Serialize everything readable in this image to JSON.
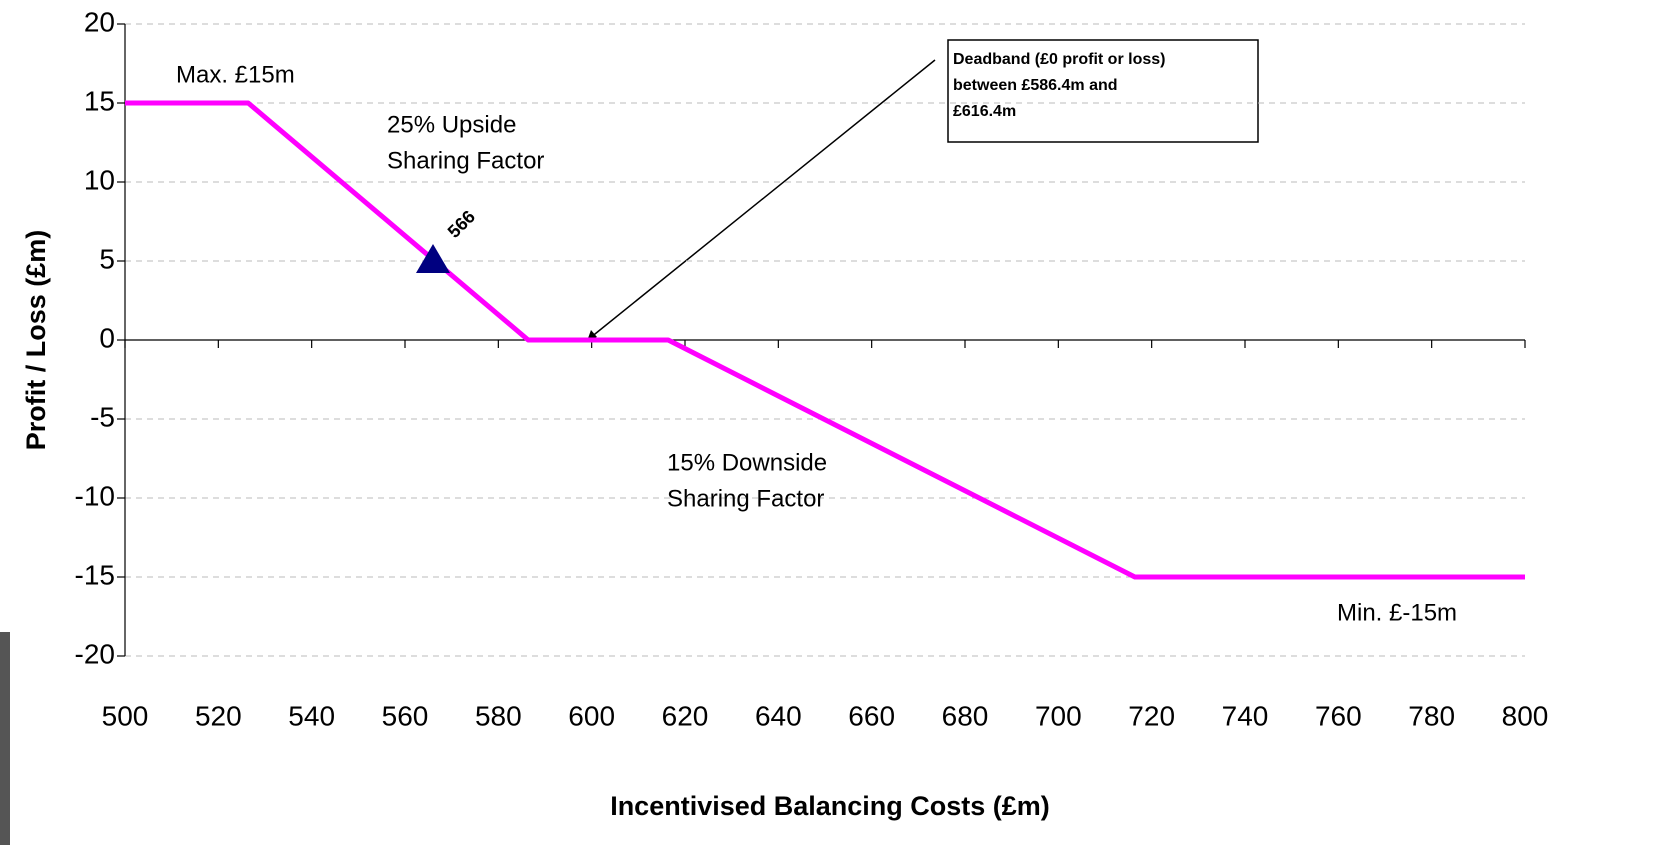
{
  "chart_data": {
    "type": "line",
    "x_label": "Incentivised Balancing Costs (£m)",
    "y_label": "Profit / Loss (£m)",
    "x": [
      500,
      526.4,
      586.4,
      616.4,
      716.4,
      800
    ],
    "values": [
      15,
      15,
      0,
      0,
      -15,
      -15
    ],
    "color": "#ff00ff",
    "marker": {
      "x": 566,
      "y": 5,
      "color": "#000080"
    },
    "xlim": [
      500,
      800
    ],
    "ylim": [
      -20,
      20
    ],
    "xticks": [
      500,
      520,
      540,
      560,
      580,
      600,
      620,
      640,
      660,
      680,
      700,
      720,
      740,
      760,
      780,
      800
    ],
    "yticks": [
      -20,
      -15,
      -10,
      -5,
      0,
      5,
      10,
      15,
      20
    ],
    "grid": true,
    "annotations": [
      {
        "lines": [
          "Max. £15m"
        ]
      },
      {
        "lines": [
          "25% Upside",
          "Sharing Factor"
        ]
      },
      {
        "lines": [
          "15% Downside",
          "Sharing Factor"
        ]
      },
      {
        "lines": [
          "Min. £-15m"
        ]
      },
      {
        "lines": [
          "Deadband (£0 profit or loss)",
          "between £586.4m and",
          "£616.4m"
        ]
      }
    ]
  }
}
